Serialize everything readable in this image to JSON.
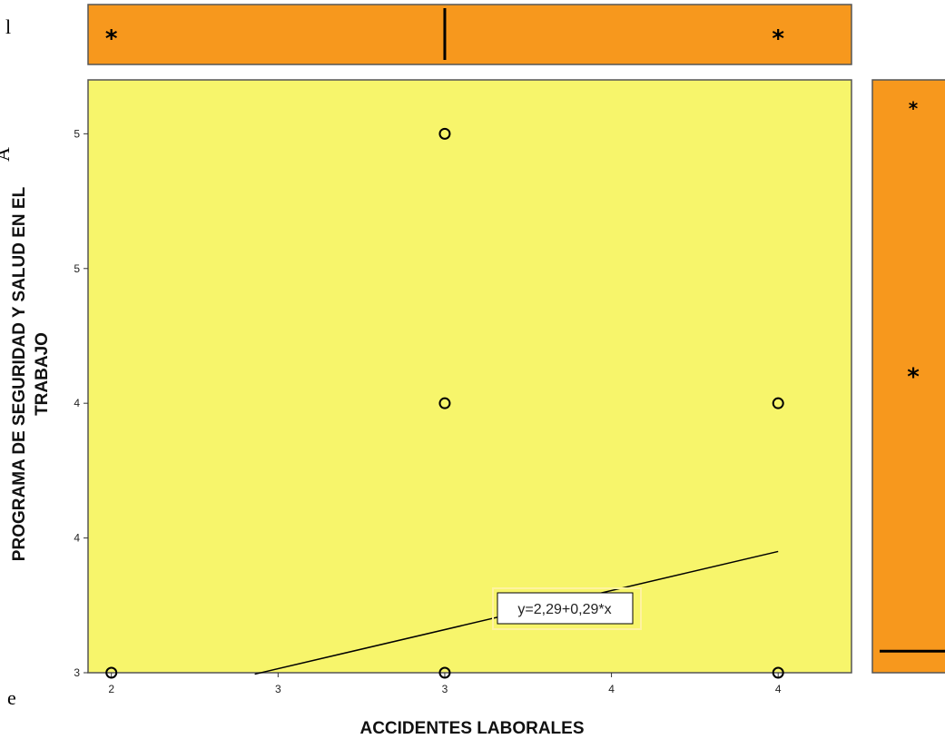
{
  "chart_data": {
    "type": "scatter",
    "xlabel": "ACCIDENTES LABORALES",
    "ylabel_line1": "PROGRAMA DE SEGURIDAD Y SALUD EN EL",
    "ylabel_line2": "TRABAJO",
    "x_tick_labels": [
      "2",
      "3",
      "3",
      "4",
      "4"
    ],
    "x_tick_values": [
      2.0,
      2.5,
      3.0,
      3.5,
      4.0
    ],
    "y_tick_labels": [
      "3",
      "4",
      "4",
      "5",
      "5"
    ],
    "y_tick_values": [
      3.0,
      3.5,
      4.0,
      4.5,
      5.0
    ],
    "xlim": [
      1.93,
      4.22
    ],
    "ylim": [
      3.0,
      5.2
    ],
    "points": [
      {
        "x": 2,
        "y": 3
      },
      {
        "x": 3,
        "y": 5
      },
      {
        "x": 3,
        "y": 4
      },
      {
        "x": 3,
        "y": 3
      },
      {
        "x": 4,
        "y": 4
      },
      {
        "x": 4,
        "y": 3
      }
    ],
    "fit_line": {
      "intercept": 2.29,
      "slope": 0.29,
      "x_from": 2.43,
      "x_to": 4.0
    },
    "fit_label": "y=2,29+0,29*x",
    "top_boxplot": {
      "median": 3.0,
      "outliers_x": [
        2,
        4
      ]
    },
    "right_boxplot": {
      "median": 3.08,
      "outliers_y": [
        5.1,
        4.1
      ]
    },
    "grid": false,
    "colors": {
      "plot_bg": "#f7f56b",
      "box_fill": "#f7981d",
      "border": "#555555"
    }
  },
  "margin_text": [
    "l",
    "A",
    "e"
  ],
  "star_symbol": "*"
}
